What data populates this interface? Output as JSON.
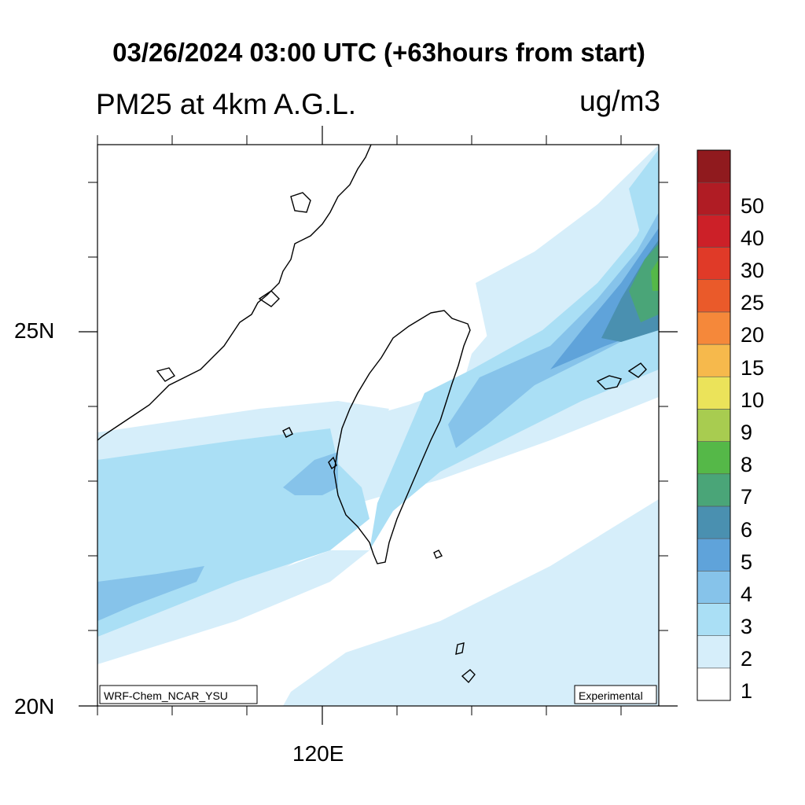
{
  "title": "03/26/2024 03:00 UTC (+63hours from start)",
  "subtitle": "PM25 at 4km A.G.L.",
  "units": "ug/m3",
  "axes": {
    "lat_labels": [
      "25N",
      "20N"
    ],
    "lon_labels": [
      "120E"
    ]
  },
  "model_label": "WRF-Chem_NCAR_YSU",
  "status_label": "Experimental",
  "colorbar": {
    "labels": [
      "1",
      "2",
      "3",
      "4",
      "5",
      "6",
      "7",
      "8",
      "9",
      "10",
      "15",
      "20",
      "25",
      "30",
      "40",
      "50"
    ],
    "colors": [
      "#ffffff",
      "#d6eefa",
      "#aadff5",
      "#86c3ea",
      "#5fa3da",
      "#4a90b0",
      "#4aa578",
      "#55b848",
      "#a8cc50",
      "#ebe35a",
      "#f6b94c",
      "#f5883a",
      "#ea5a2a",
      "#e03a28",
      "#cc2028",
      "#b01c24",
      "#901a1e"
    ]
  }
}
